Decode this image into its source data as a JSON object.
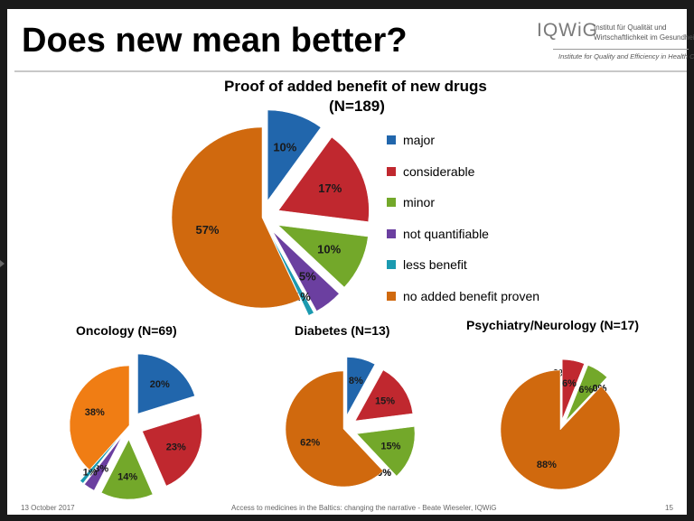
{
  "slide": {
    "title": "Does new mean better?",
    "logo": {
      "word": "IQWiG",
      "line1": "Institut für Qualität und",
      "line2": "Wirtschaftlichkeit im Gesundheitswesen",
      "sub": "Institute for Quality and Efficiency in Health Care"
    },
    "footer": {
      "date": "13 October 2017",
      "center": "Access to medicines in the Baltics: changing the narrative - Beate Wieseler, IQWiG",
      "page": "15"
    }
  },
  "chart_data": [
    {
      "type": "pie",
      "title": "Proof of added benefit of new drugs",
      "subtitle": "(N=189)",
      "legend_placement": "right",
      "categories": [
        "major",
        "considerable",
        "minor",
        "not quantifiable",
        "less benefit",
        "no added benefit proven"
      ],
      "values": [
        10,
        17,
        10,
        5,
        1,
        57
      ],
      "labels": [
        "10%",
        "17%",
        "10%",
        "5%",
        "1%",
        "57%"
      ],
      "colors": [
        "#2166ac",
        "#c0282f",
        "#73a82a",
        "#6b3fa0",
        "#1b9ab0",
        "#d0690e"
      ]
    },
    {
      "type": "pie",
      "title": "Oncology (N=69)",
      "categories": [
        "major",
        "considerable",
        "minor",
        "not quantifiable",
        "less benefit",
        "no added benefit proven"
      ],
      "values": [
        20,
        23,
        14,
        3,
        1,
        38
      ],
      "labels": [
        "20%",
        "23%",
        "14%",
        "3%",
        "1%",
        "38%"
      ],
      "colors": [
        "#2166ac",
        "#c0282f",
        "#73a82a",
        "#6b3fa0",
        "#1b9ab0",
        "#f07d14"
      ]
    },
    {
      "type": "pie",
      "title": "Diabetes (N=13)",
      "categories": [
        "major",
        "considerable",
        "minor",
        "not quantifiable",
        "less benefit",
        "no added benefit proven"
      ],
      "values": [
        8,
        15,
        15,
        0,
        0,
        62
      ],
      "labels": [
        "8%",
        "15%",
        "15%",
        "0%",
        "0%",
        "62%"
      ],
      "colors": [
        "#2166ac",
        "#c0282f",
        "#73a82a",
        "#6b3fa0",
        "#1b9ab0",
        "#d0690e"
      ]
    },
    {
      "type": "pie",
      "title": "Psychiatry/Neurology (N=17)",
      "categories": [
        "major",
        "considerable",
        "minor",
        "not quantifiable",
        "less benefit",
        "no added benefit proven"
      ],
      "values": [
        0,
        6,
        6,
        0,
        0,
        88
      ],
      "labels": [
        "0%",
        "6%",
        "6%",
        "0%",
        "0%",
        "88%"
      ],
      "colors": [
        "#2166ac",
        "#c0282f",
        "#73a82a",
        "#6b3fa0",
        "#1b9ab0",
        "#d0690e"
      ]
    }
  ]
}
